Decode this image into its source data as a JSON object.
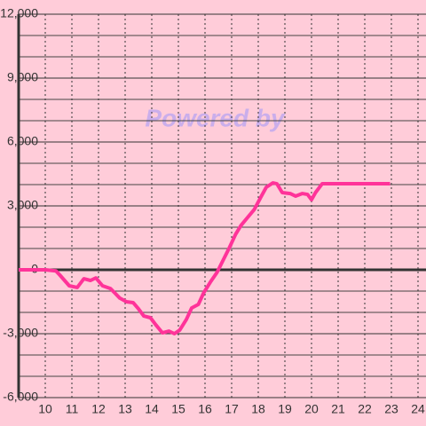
{
  "chart_data": {
    "type": "line",
    "watermark": "Powered by",
    "x": [
      9,
      10,
      10.4,
      10.55,
      10.9,
      11.2,
      11.45,
      11.7,
      11.9,
      12.15,
      12.45,
      12.8,
      13.05,
      13.3,
      13.5,
      13.7,
      13.95,
      14.15,
      14.4,
      14.65,
      14.85,
      15.05,
      15.3,
      15.5,
      15.75,
      15.95,
      16.2,
      16.45,
      16.7,
      16.9,
      17.15,
      17.35,
      17.6,
      17.85,
      18.1,
      18.3,
      18.55,
      18.7,
      18.9,
      19.2,
      19.4,
      19.65,
      19.85,
      20,
      20.15,
      20.4,
      22.95
    ],
    "series": [
      {
        "color": "#ff3399",
        "values": [
          0,
          0,
          -50,
          -250,
          -750,
          -830,
          -420,
          -500,
          -380,
          -750,
          -880,
          -1330,
          -1500,
          -1540,
          -1830,
          -2170,
          -2250,
          -2580,
          -2960,
          -2880,
          -3000,
          -2830,
          -2330,
          -1790,
          -1625,
          -1080,
          -580,
          -125,
          500,
          1000,
          1670,
          2080,
          2460,
          2830,
          3420,
          3875,
          4080,
          4040,
          3625,
          3580,
          3460,
          3580,
          3540,
          3290,
          3625,
          4040,
          4040
        ]
      }
    ],
    "xlim": [
      9,
      24.3
    ],
    "xticks": [
      10,
      11,
      12,
      13,
      14,
      15,
      16,
      17,
      18,
      19,
      20,
      21,
      22,
      23,
      24
    ],
    "ylim": [
      -6000,
      12000
    ],
    "yticks": [
      {
        "value": -6000,
        "label": "-6,000"
      },
      {
        "value": -3000,
        "label": "-3,000"
      },
      0,
      {
        "value": 3000,
        "label": "3,000"
      },
      {
        "value": 6000,
        "label": "6,000"
      },
      {
        "value": 9000,
        "label": "9,000"
      },
      {
        "value": 12000,
        "label": "12,000"
      }
    ],
    "yminorticks": [
      -5000,
      -4000,
      -2000,
      -1000,
      1000,
      2000,
      4000,
      5000,
      7000,
      8000,
      10000,
      11000
    ],
    "grid": true
  }
}
